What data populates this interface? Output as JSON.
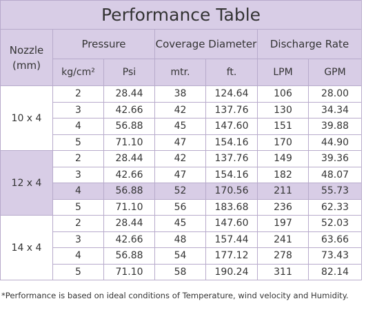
{
  "title": "Performance Table",
  "header": {
    "nozzle": "Nozzle (mm)",
    "pressure": "Pressure",
    "coverage": "Coverage Diameter",
    "discharge": "Discharge Rate",
    "units": [
      "kg/cm²",
      "Psi",
      "mtr.",
      "ft.",
      "LPM",
      "GPM"
    ]
  },
  "groups": [
    {
      "nozzle": "10 x 4",
      "rows": [
        [
          "2",
          "28.44",
          "38",
          "124.64",
          "106",
          "28.00"
        ],
        [
          "3",
          "42.66",
          "42",
          "137.76",
          "130",
          "34.34"
        ],
        [
          "4",
          "56.88",
          "45",
          "147.60",
          "151",
          "39.88"
        ],
        [
          "5",
          "71.10",
          "47",
          "154.16",
          "170",
          "44.90"
        ]
      ]
    },
    {
      "nozzle": "12 x 4",
      "rows": [
        [
          "2",
          "28.44",
          "42",
          "137.76",
          "149",
          "39.36"
        ],
        [
          "3",
          "42.66",
          "47",
          "154.16",
          "182",
          "48.07"
        ],
        [
          "4",
          "56.88",
          "52",
          "170.56",
          "211",
          "55.73"
        ],
        [
          "5",
          "71.10",
          "56",
          "183.68",
          "236",
          "62.33"
        ]
      ]
    },
    {
      "nozzle": "14 x 4",
      "rows": [
        [
          "2",
          "28.44",
          "45",
          "147.60",
          "197",
          "52.03"
        ],
        [
          "3",
          "42.66",
          "48",
          "157.44",
          "241",
          "63.66"
        ],
        [
          "4",
          "56.88",
          "54",
          "177.12",
          "278",
          "73.43"
        ],
        [
          "5",
          "71.10",
          "58",
          "190.24",
          "311",
          "82.14"
        ]
      ]
    }
  ],
  "footnote": "*Performance is based on ideal conditions of Temperature, wind velocity and Humidity."
}
